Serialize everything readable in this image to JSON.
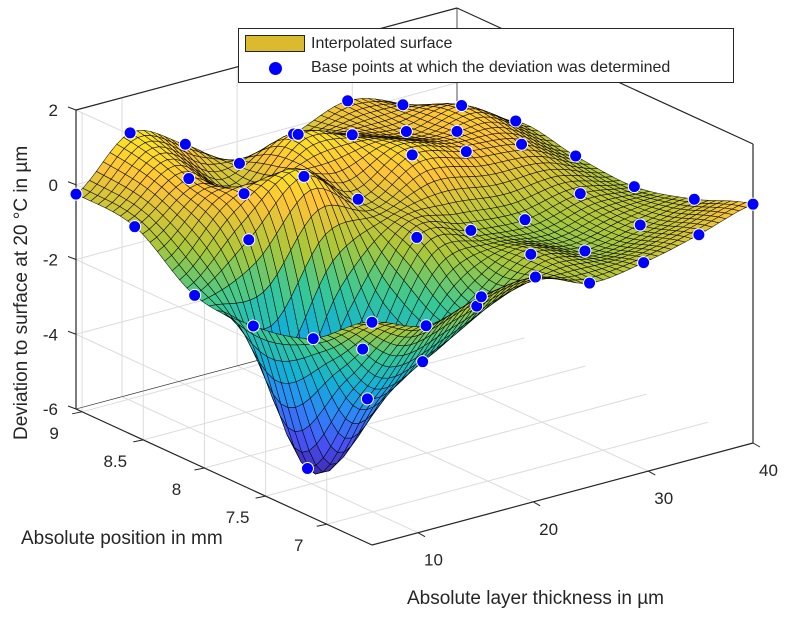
{
  "chart_data": {
    "type": "surface3d",
    "title": "",
    "xlabel": "Absolute layer thickness in µm",
    "ylabel": "Absolute position in mm",
    "zlabel": "Deviation to surface at 20 °C in µm",
    "xlim": [
      6,
      39.1
    ],
    "ylim": [
      6.63,
      9.05
    ],
    "zlim": [
      -6,
      2
    ],
    "xticks": [
      "10",
      "20",
      "30",
      "40"
    ],
    "xtick_values": [
      10,
      20,
      30,
      40
    ],
    "yticks": [
      "7",
      "7.5",
      "8",
      "8.5",
      "9"
    ],
    "ytick_values": [
      7,
      7.5,
      8,
      8.5,
      9
    ],
    "zticks": [
      "-6",
      "-4",
      "-2",
      "0",
      "2"
    ],
    "ztick_values": [
      -6,
      -4,
      -2,
      0,
      2
    ],
    "grid": true,
    "colormap": "parula",
    "base_points": {
      "x": [
        6,
        10.7,
        15.5,
        20.2,
        24.9,
        29.6,
        34.4,
        39.1
      ],
      "y": [
        9.05,
        8.57,
        8.08,
        7.6,
        7.11,
        6.63
      ],
      "z": [
        [
          -0.25,
          1.0,
          0.3,
          -0.6,
          -0.2,
          0.3,
          -0.2,
          -1.3
        ],
        [
          -0.4,
          0.5,
          -0.3,
          0.9,
          0.5,
          0.2,
          0.5,
          -0.3
        ],
        [
          -1.5,
          -0.4,
          0.9,
          -0.1,
          0.7,
          0.4,
          0.2,
          -0.5
        ],
        [
          -1.6,
          -5.8,
          -3.0,
          -0.4,
          -0.6,
          -0.7,
          -0.4,
          -0.6
        ],
        [
          -1.2,
          -3.2,
          -2.6,
          -1.5,
          -0.5,
          -0.8,
          -0.5,
          -0.2
        ],
        [
          -0.04,
          -0.52,
          -0.14,
          0.0,
          -0.55,
          -0.39,
          -0.04,
          0.39
        ]
      ]
    },
    "legend": {
      "position": "top",
      "entries": [
        {
          "label": "Interpolated surface",
          "type": "patch",
          "color": "#dbbb2d"
        },
        {
          "label": "Base points at which the deviation was determined",
          "type": "marker",
          "color": "#0000ff"
        }
      ]
    }
  },
  "colors": {
    "marker": "#0000ff",
    "marker_edge": "#ffffff",
    "axis": "#262626",
    "grid": "#dcdcdc",
    "mesh_edge": "#000000"
  }
}
